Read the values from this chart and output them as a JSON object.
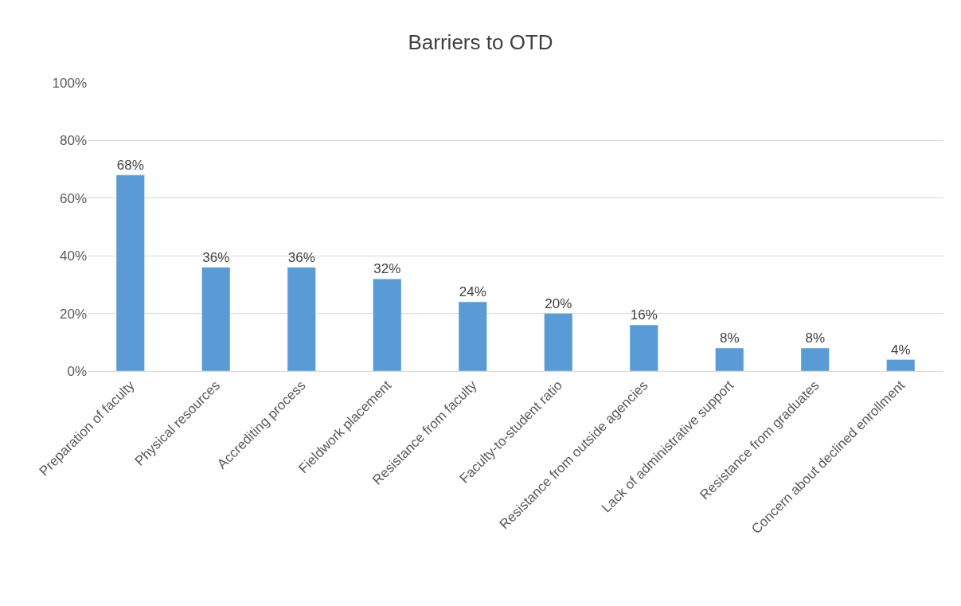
{
  "chart_data": {
    "type": "bar",
    "title": "Barriers to OTD",
    "categories": [
      "Preparation of faculty",
      "Physical resources",
      "Accrediting process",
      "Fieldwork placement",
      "Resistance from faculty",
      "Faculty-to-student ratio",
      "Resistance from outside agencies",
      "Lack of administrative support",
      "Resistance from graduates",
      "Concern about declined enrollment"
    ],
    "values": [
      68,
      36,
      36,
      32,
      24,
      20,
      16,
      8,
      8,
      4
    ],
    "value_labels": [
      "68%",
      "36%",
      "36%",
      "32%",
      "24%",
      "20%",
      "16%",
      "8%",
      "8%",
      "4%"
    ],
    "color": "#5b9bd5",
    "ylim": [
      0,
      100
    ],
    "yticks": [
      {
        "value": 0,
        "label": "0%"
      },
      {
        "value": 20,
        "label": "20%"
      },
      {
        "value": 40,
        "label": "40%"
      },
      {
        "value": 60,
        "label": "60%"
      },
      {
        "value": 80,
        "label": "80%"
      },
      {
        "value": 100,
        "label": "100%"
      }
    ],
    "grid": "y",
    "legend": false
  }
}
